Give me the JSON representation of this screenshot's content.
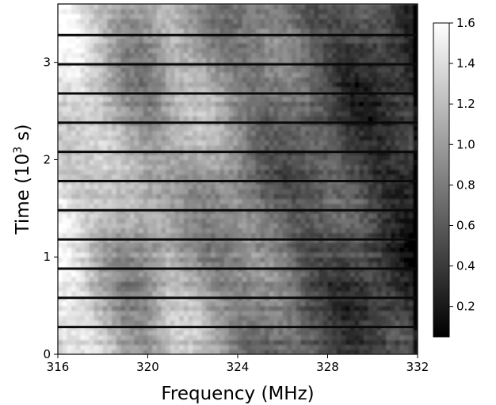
{
  "chart_data": {
    "type": "heatmap",
    "colormap": "grayscale",
    "xlabel": "Frequency (MHz)",
    "ylabel_prefix": "Time (10",
    "ylabel_sup": "3",
    "ylabel_suffix": " s)",
    "xlim": [
      316,
      332
    ],
    "ylim": [
      0,
      3.6
    ],
    "x_ticks": [
      316,
      320,
      324,
      328,
      332
    ],
    "x_tick_labels": [
      "316",
      "320",
      "324",
      "328",
      "332"
    ],
    "y_ticks": [
      0,
      1,
      2,
      3
    ],
    "y_tick_labels": [
      "0",
      "1",
      "2",
      "3"
    ],
    "colorbar": {
      "range": [
        0.05,
        1.6
      ],
      "ticks": [
        0.2,
        0.4,
        0.6,
        0.8,
        1.0,
        1.2,
        1.4,
        1.6
      ],
      "tick_labels": [
        "0.2",
        "0.4",
        "0.6",
        "0.8",
        "1.0",
        "1.2",
        "1.4",
        "1.6"
      ]
    },
    "gap_times": [
      0.28,
      0.58,
      0.88,
      1.18,
      1.48,
      1.78,
      2.08,
      2.38,
      2.68,
      2.98,
      3.28
    ],
    "frequency_profile": {
      "frequency": [
        316,
        317,
        318,
        319,
        320,
        321,
        322,
        323,
        324,
        325,
        326,
        327,
        328,
        329,
        330,
        331,
        332
      ],
      "value": [
        1.45,
        1.35,
        1.2,
        1.0,
        0.95,
        1.1,
        1.05,
        0.95,
        0.85,
        0.75,
        0.7,
        0.6,
        0.55,
        0.45,
        0.4,
        0.35,
        0.3
      ]
    }
  }
}
